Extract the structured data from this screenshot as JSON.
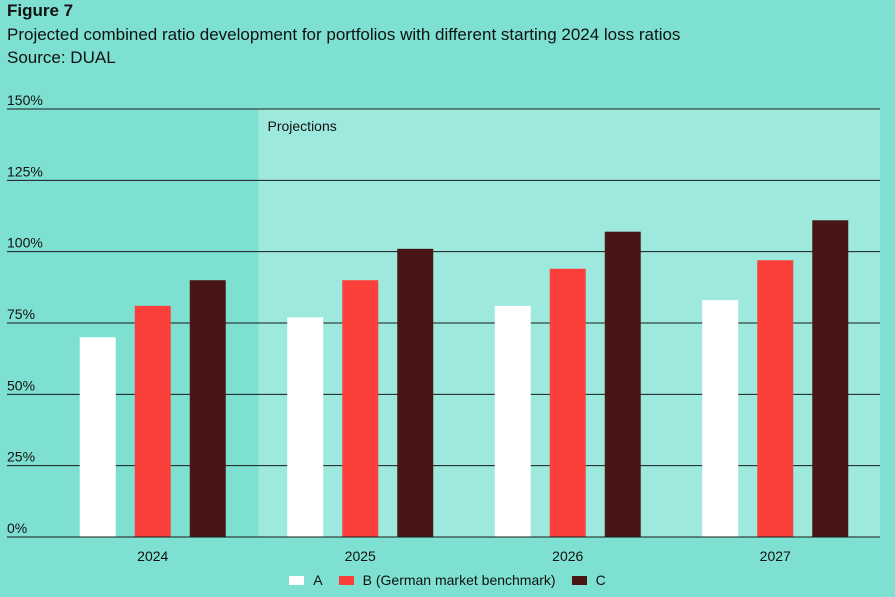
{
  "figure": {
    "label": "Figure 7",
    "title": "Projected combined ratio development for portfolios with different starting 2024 loss ratios",
    "source": "Source: DUAL"
  },
  "chart_data": {
    "type": "bar",
    "title": "Projected combined ratio development for portfolios with different starting 2024 loss ratios",
    "categories": [
      "2024",
      "2025",
      "2026",
      "2027"
    ],
    "series": [
      {
        "name": "A",
        "color": "#ffffff",
        "values": [
          70,
          77,
          81,
          83
        ]
      },
      {
        "name": "B (German market benchmark)",
        "color": "#fb403b",
        "values": [
          81,
          90,
          94,
          97
        ]
      },
      {
        "name": "C",
        "color": "#4a1515",
        "values": [
          90,
          101,
          107,
          111
        ]
      }
    ],
    "ylim": [
      0,
      150
    ],
    "yticks": [
      0,
      25,
      50,
      75,
      100,
      125,
      150
    ],
    "ytick_labels": [
      "0%",
      "25%",
      "50%",
      "75%",
      "100%",
      "125%",
      "150%"
    ],
    "xlabel": "",
    "ylabel": "",
    "grid": true,
    "legend_position": "bottom-center",
    "annotation": {
      "text": "Projections",
      "start_category": "2025"
    },
    "colors": {
      "background": "#7de0d0",
      "projection_band": "#9ee9dd",
      "gridline": "#1a1a1a"
    }
  }
}
